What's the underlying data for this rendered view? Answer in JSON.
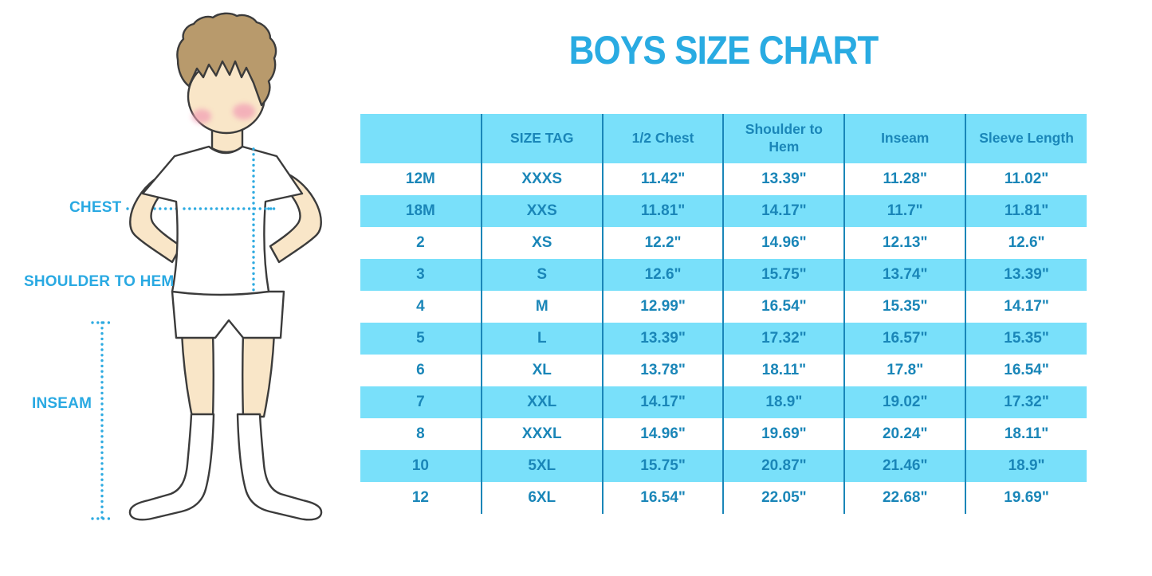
{
  "title": "BOYS SIZE CHART",
  "figure": {
    "labels": {
      "chest": "CHEST",
      "shoulder_to_hem": "SHOULDER TO HEM",
      "inseam": "INSEAM"
    },
    "illustration": "boy-with-measurement-dotted-lines"
  },
  "chart_data": {
    "type": "table",
    "title": "BOYS SIZE CHART",
    "columns": [
      "",
      "SIZE TAG",
      "1/2 Chest",
      "Shoulder to Hem",
      "Inseam",
      "Sleeve Length"
    ],
    "rows": [
      [
        "12M",
        "XXXS",
        "11.42\"",
        "13.39\"",
        "11.28\"",
        "11.02\""
      ],
      [
        "18M",
        "XXS",
        "11.81\"",
        "14.17\"",
        "11.7\"",
        "11.81\""
      ],
      [
        "2",
        "XS",
        "12.2\"",
        "14.96\"",
        "12.13\"",
        "12.6\""
      ],
      [
        "3",
        "S",
        "12.6\"",
        "15.75\"",
        "13.74\"",
        "13.39\""
      ],
      [
        "4",
        "M",
        "12.99\"",
        "16.54\"",
        "15.35\"",
        "14.17\""
      ],
      [
        "5",
        "L",
        "13.39\"",
        "17.32\"",
        "16.57\"",
        "15.35\""
      ],
      [
        "6",
        "XL",
        "13.78\"",
        "18.11\"",
        "17.8\"",
        "16.54\""
      ],
      [
        "7",
        "XXL",
        "14.17\"",
        "18.9\"",
        "19.02\"",
        "17.32\""
      ],
      [
        "8",
        "XXXL",
        "14.96\"",
        "19.69\"",
        "20.24\"",
        "18.11\""
      ],
      [
        "10",
        "5XL",
        "15.75\"",
        "20.87\"",
        "21.46\"",
        "18.9\""
      ],
      [
        "12",
        "6XL",
        "16.54\"",
        "22.05\"",
        "22.68\"",
        "19.69\""
      ]
    ],
    "striped_row_labels": [
      "18M",
      "3",
      "5",
      "7",
      "10"
    ],
    "layout": {
      "header_background": "banded",
      "gridlines": "vertical-only"
    }
  },
  "colors": {
    "title_blue": "#29ABE2",
    "label_blue": "#29A9E2",
    "dotted_line_blue": "#2FABE1",
    "table_band_cyan": "#79E0FA",
    "table_text_blue": "#1A86B8",
    "table_divider_blue": "#1A86B8",
    "skin": "#F9E6C8",
    "hair": "#B89A6C",
    "background": "#FFFFFF"
  }
}
